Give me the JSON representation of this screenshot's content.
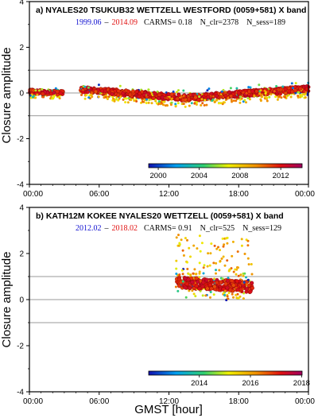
{
  "shared": {
    "xlabel": "GMST [hour]",
    "ylabel": "Closure amplitude",
    "sep": "–"
  },
  "chart_data": [
    {
      "type": "scatter",
      "panel_label": "a)",
      "title": "NYALES20 TSUKUB32 WETTZELL WESTFORD  (0059+581) X band",
      "date_start": "1999.06",
      "date_end": "2014.09",
      "carms": "CARMS= 0.18",
      "n_clr": "N_clr=2378",
      "n_sess": "N_sess=189",
      "xlim": [
        0,
        24
      ],
      "ylim": [
        -4,
        4
      ],
      "x_ticks": [
        "00:00",
        "06:00",
        "12:00",
        "18:00",
        "00:00"
      ],
      "y_ticks": [
        "-4",
        "-2",
        "0",
        "2",
        "4"
      ],
      "ref_lines": [
        1,
        -1
      ],
      "colorbar": {
        "range": [
          1999.06,
          2014.09
        ],
        "labels": [
          "2000",
          "2004",
          "2008",
          "2012"
        ],
        "label_values": [
          2000,
          2004,
          2008,
          2012
        ]
      },
      "segments": [
        {
          "x0": 0,
          "x1": 2.9,
          "y0": 0.06,
          "y1": 0.0,
          "spread": 0.22
        },
        {
          "x0": 4.4,
          "x1": 13.5,
          "y0": 0.15,
          "y1": -0.22,
          "spread": 0.32
        },
        {
          "x0": 13.5,
          "x1": 24,
          "y0": -0.22,
          "y1": 0.18,
          "spread": 0.32
        }
      ]
    },
    {
      "type": "scatter",
      "panel_label": "b)",
      "title": "KATH12M KOKEE NYALES20 WETTZELL  (0059+581) X band",
      "date_start": "2012.02",
      "date_end": "2018.02",
      "carms": "CARMS= 0.91",
      "n_clr": "N_clr=525",
      "n_sess": "N_sess=129",
      "xlim": [
        0,
        24
      ],
      "ylim": [
        -4,
        4
      ],
      "x_ticks": [
        "00:00",
        "06:00",
        "12:00",
        "18:00",
        "00:00"
      ],
      "y_ticks": [
        "-4",
        "-2",
        "0",
        "2",
        "4"
      ],
      "ref_lines": [
        1,
        -1
      ],
      "colorbar": {
        "range": [
          2012.02,
          2018.02
        ],
        "labels": [
          "2014",
          "2016",
          "2018"
        ],
        "label_values": [
          2014,
          2016,
          2018
        ]
      },
      "segments": [
        {
          "x0": 12.6,
          "x1": 19.2,
          "y0": 0.75,
          "y1": 0.55,
          "spread": 0.6
        }
      ]
    }
  ]
}
